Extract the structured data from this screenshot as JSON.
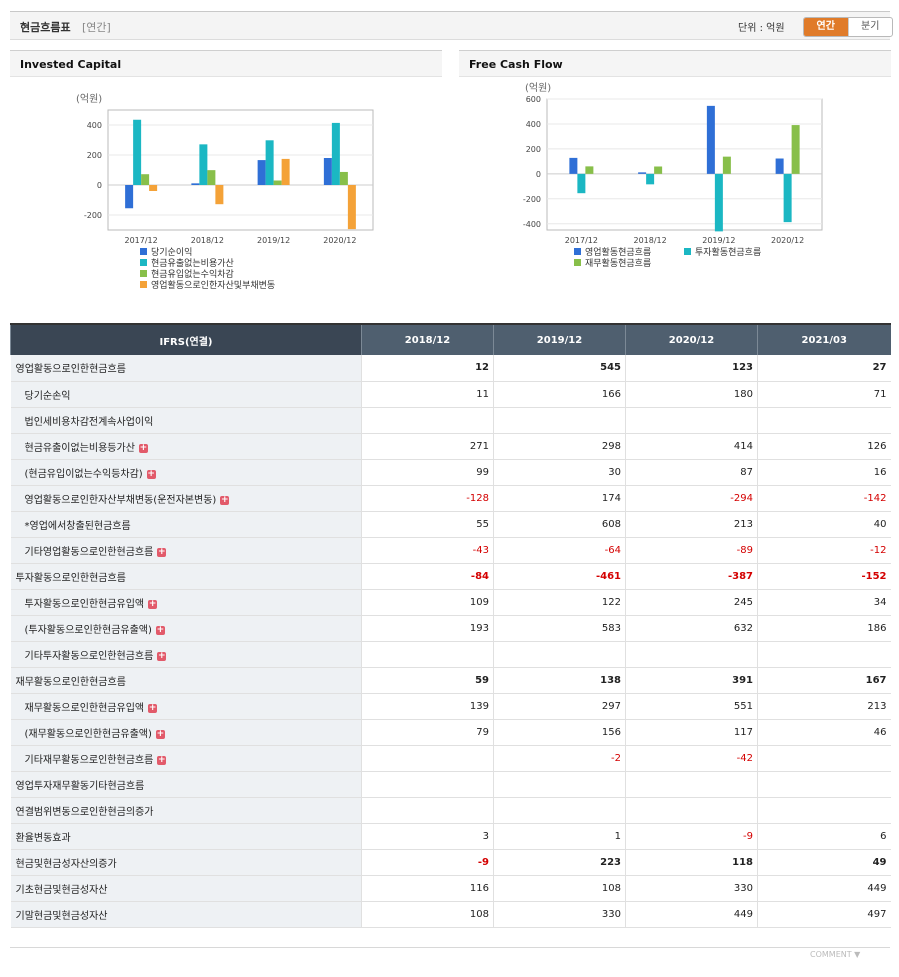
{
  "header": {
    "title": "현금흐름표",
    "period": "[연간]",
    "unit_label": "단위 : 억원",
    "toggle": [
      "연간",
      "분기"
    ]
  },
  "charts": {
    "left_title": "Invested Capital",
    "right_title": "Free Cash Flow"
  },
  "chart_data": [
    {
      "type": "bar",
      "title": "Invested Capital",
      "ylabel": "(억원)",
      "ylim": [
        -300,
        500
      ],
      "yticks": [
        400,
        200,
        0,
        -200
      ],
      "categories": [
        "2017/12",
        "2018/12",
        "2019/12",
        "2020/12"
      ],
      "series": [
        {
          "name": "당기순이익",
          "color": "#2f6fd6",
          "values": [
            -155,
            11,
            166,
            180
          ]
        },
        {
          "name": "현금유출없는비용가산",
          "color": "#1bb7c3",
          "values": [
            435,
            271,
            298,
            414
          ]
        },
        {
          "name": "현금유입없는수익차감",
          "color": "#88bf4a",
          "values": [
            72,
            99,
            30,
            87
          ]
        },
        {
          "name": "영업활동으로인한자산및부채변동",
          "color": "#f4a238",
          "values": [
            -40,
            -128,
            174,
            -294
          ]
        }
      ],
      "legend_placement": "bottom",
      "grid": true
    },
    {
      "type": "bar",
      "title": "Free Cash Flow",
      "ylabel": "(억원)",
      "ylim": [
        -450,
        600
      ],
      "yticks": [
        600,
        400,
        200,
        0,
        -200,
        -400
      ],
      "categories": [
        "2017/12",
        "2018/12",
        "2019/12",
        "2020/12"
      ],
      "series": [
        {
          "name": "영업활동현금흐름",
          "color": "#2f6fd6",
          "values": [
            128,
            12,
            545,
            123
          ]
        },
        {
          "name": "투자활동현금흐름",
          "color": "#1bb7c3",
          "values": [
            -155,
            -84,
            -461,
            -387
          ]
        },
        {
          "name": "재무활동현금흐름",
          "color": "#88bf4a",
          "values": [
            60,
            59,
            138,
            391
          ]
        }
      ],
      "legend_placement": "bottom",
      "grid": true
    }
  ],
  "table": {
    "header_label": "IFRS(연결)",
    "columns": [
      "2018/12",
      "2019/12",
      "2020/12",
      "2021/03"
    ],
    "rows": [
      {
        "label": "영업활동으로인한현금흐름",
        "bold": true,
        "sub": false,
        "plus": false,
        "values": [
          "12",
          "545",
          "123",
          "27"
        ]
      },
      {
        "label": "당기순손익",
        "bold": false,
        "sub": true,
        "plus": false,
        "values": [
          "11",
          "166",
          "180",
          "71"
        ]
      },
      {
        "label": "법인세비용차감전계속사업이익",
        "bold": false,
        "sub": true,
        "plus": false,
        "values": [
          "",
          "",
          "",
          ""
        ]
      },
      {
        "label": "현금유출이없는비용등가산",
        "bold": false,
        "sub": true,
        "plus": true,
        "values": [
          "271",
          "298",
          "414",
          "126"
        ]
      },
      {
        "label": "(현금유입이없는수익등차감)",
        "bold": false,
        "sub": true,
        "plus": true,
        "values": [
          "99",
          "30",
          "87",
          "16"
        ]
      },
      {
        "label": "영업활동으로인한자산부채변동(운전자본변동)",
        "bold": false,
        "sub": true,
        "plus": true,
        "values": [
          "-128",
          "174",
          "-294",
          "-142"
        ]
      },
      {
        "label": "*영업에서창출된현금흐름",
        "bold": false,
        "sub": true,
        "plus": false,
        "values": [
          "55",
          "608",
          "213",
          "40"
        ]
      },
      {
        "label": "기타영업활동으로인한현금흐름",
        "bold": false,
        "sub": true,
        "plus": true,
        "values": [
          "-43",
          "-64",
          "-89",
          "-12"
        ]
      },
      {
        "label": "투자활동으로인한현금흐름",
        "bold": true,
        "sub": false,
        "plus": false,
        "values": [
          "-84",
          "-461",
          "-387",
          "-152"
        ]
      },
      {
        "label": "투자활동으로인한현금유입액",
        "bold": false,
        "sub": true,
        "plus": true,
        "values": [
          "109",
          "122",
          "245",
          "34"
        ]
      },
      {
        "label": "(투자활동으로인한현금유출액)",
        "bold": false,
        "sub": true,
        "plus": true,
        "values": [
          "193",
          "583",
          "632",
          "186"
        ]
      },
      {
        "label": "기타투자활동으로인한현금흐름",
        "bold": false,
        "sub": true,
        "plus": true,
        "values": [
          "",
          "",
          "",
          ""
        ]
      },
      {
        "label": "재무활동으로인한현금흐름",
        "bold": true,
        "sub": false,
        "plus": false,
        "values": [
          "59",
          "138",
          "391",
          "167"
        ]
      },
      {
        "label": "재무활동으로인한현금유입액",
        "bold": false,
        "sub": true,
        "plus": true,
        "values": [
          "139",
          "297",
          "551",
          "213"
        ]
      },
      {
        "label": "(재무활동으로인한현금유출액)",
        "bold": false,
        "sub": true,
        "plus": true,
        "values": [
          "79",
          "156",
          "117",
          "46"
        ]
      },
      {
        "label": "기타재무활동으로인한현금흐름",
        "bold": false,
        "sub": true,
        "plus": true,
        "values": [
          "",
          "-2",
          "-42",
          ""
        ]
      },
      {
        "label": "영업투자재무활동기타현금흐름",
        "bold": false,
        "sub": false,
        "plus": false,
        "values": [
          "",
          "",
          "",
          ""
        ]
      },
      {
        "label": "연결범위변동으로인한현금의증가",
        "bold": false,
        "sub": false,
        "plus": false,
        "values": [
          "",
          "",
          "",
          ""
        ]
      },
      {
        "label": "환율변동효과",
        "bold": false,
        "sub": false,
        "plus": false,
        "values": [
          "3",
          "1",
          "-9",
          "6"
        ]
      },
      {
        "label": "현금및현금성자산의증가",
        "bold": true,
        "sub": false,
        "plus": false,
        "values": [
          "-9",
          "223",
          "118",
          "49"
        ]
      },
      {
        "label": "기초현금및현금성자산",
        "bold": false,
        "sub": false,
        "plus": false,
        "values": [
          "116",
          "108",
          "330",
          "449"
        ]
      },
      {
        "label": "기말현금및현금성자산",
        "bold": false,
        "sub": false,
        "plus": false,
        "values": [
          "108",
          "330",
          "449",
          "497"
        ]
      }
    ]
  },
  "footer": {
    "comment_label": "COMMENT ▼"
  },
  "colors": {
    "accent": "#e07b29",
    "header_dark": "#3a4654",
    "negative": "#d40000"
  }
}
